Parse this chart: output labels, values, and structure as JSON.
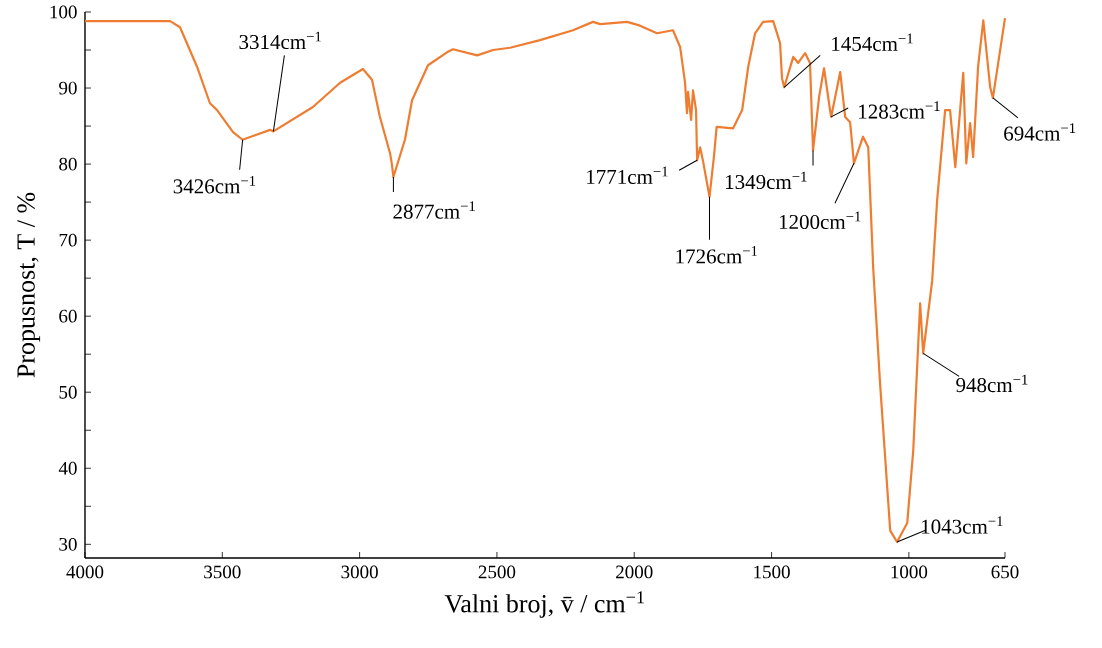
{
  "chart_data": {
    "type": "line",
    "xlabel": "Valni broj, v̄ / cm$^{−1}$",
    "ylabel": "Propusnost, T / %",
    "xlim": [
      4000,
      650
    ],
    "ylim": [
      28.2,
      100
    ],
    "xticks": [
      4000,
      3500,
      3000,
      2500,
      2000,
      1500,
      1000,
      650
    ],
    "yticks": [
      30,
      {
        "value": 35,
        "label": null
      },
      40,
      {
        "value": 45,
        "label": null
      },
      50,
      {
        "value": 55,
        "label": null
      },
      60,
      {
        "value": 65,
        "label": null
      },
      70,
      {
        "value": 75,
        "label": null
      },
      80,
      {
        "value": 85,
        "label": null
      },
      90,
      {
        "value": 95,
        "label": null
      },
      100
    ],
    "marker": "none",
    "line_style": "solid",
    "series": [
      {
        "color": "#ee7d31",
        "x": [
          4000,
          3690,
          3654,
          3592,
          3545,
          3519,
          3461,
          3426,
          3326,
          3314,
          3170,
          3071,
          2988,
          2955,
          2926,
          2889,
          2883,
          2877,
          2835,
          2809,
          2751,
          2682,
          2660,
          2572,
          2514,
          2452,
          2343,
          2223,
          2150,
          2124,
          2026,
          1979,
          1917,
          1859,
          1833,
          1815,
          1808,
          1804,
          1793,
          1786,
          1775,
          1771,
          1760,
          1748,
          1726,
          1710,
          1700,
          1640,
          1607,
          1585,
          1560,
          1531,
          1494,
          1469,
          1462,
          1454,
          1421,
          1403,
          1378,
          1360,
          1349,
          1327,
          1309,
          1287,
          1283,
          1250,
          1232,
          1214,
          1200,
          1167,
          1148,
          1130,
          1105,
          1068,
          1043,
          1006,
          984,
          959,
          948,
          915,
          897,
          868,
          850,
          831,
          802,
          791,
          777,
          766,
          748,
          729,
          704,
          694,
          650
        ],
        "values": [
          98.8,
          98.8,
          98.0,
          92.8,
          88.0,
          87.1,
          84.2,
          83.2,
          84.5,
          84.3,
          87.5,
          90.7,
          92.5,
          91.1,
          86.2,
          81.4,
          80.1,
          78.3,
          83.2,
          88.4,
          93.0,
          94.7,
          95.1,
          94.3,
          95.0,
          95.3,
          96.3,
          97.6,
          98.7,
          98.4,
          98.7,
          98.2,
          97.2,
          97.6,
          95.4,
          90.7,
          86.7,
          89.5,
          85.8,
          89.7,
          87.1,
          80.5,
          82.2,
          80.1,
          75.7,
          80.9,
          84.9,
          84.7,
          87.1,
          92.8,
          97.2,
          98.7,
          98.8,
          95.9,
          91.3,
          90.1,
          94.1,
          93.3,
          94.6,
          93.3,
          81.8,
          88.8,
          92.6,
          87.1,
          86.2,
          92.1,
          86.2,
          85.5,
          80.1,
          83.6,
          82.2,
          66.4,
          51.2,
          31.8,
          30.3,
          32.8,
          42.4,
          61.7,
          55.1,
          64.7,
          75.3,
          87.1,
          87.1,
          79.6,
          92.0,
          80.1,
          85.4,
          80.9,
          92.8,
          98.9,
          90.1,
          88.7,
          99.2
        ]
      }
    ],
    "annotations": [
      {
        "text": "3426cm$^{−1}$",
        "x": 3426,
        "y": 83.2
      },
      {
        "text": "3314cm$^{−1}$",
        "x": 3314,
        "y": 84.3
      },
      {
        "text": "2877cm$^{−1}$",
        "x": 2877,
        "y": 78.3
      },
      {
        "text": "1771cm$^{−1}$",
        "x": 1771,
        "y": 80.5
      },
      {
        "text": "1726cm$^{−1}$",
        "x": 1726,
        "y": 75.7
      },
      {
        "text": "1349cm$^{−1}$",
        "x": 1349,
        "y": 81.8
      },
      {
        "text": "1454cm$^{−1}$",
        "x": 1454,
        "y": 90.1
      },
      {
        "text": "1283cm$^{−1}$",
        "x": 1283,
        "y": 86.2
      },
      {
        "text": "1200cm$^{−1}$",
        "x": 1200,
        "y": 80.1
      },
      {
        "text": "1043cm$^{−1}$",
        "x": 1043,
        "y": 30.3
      },
      {
        "text": "948cm$^{−1}$",
        "x": 948,
        "y": 55.1
      },
      {
        "text": "694cm$^{−1}$",
        "x": 694,
        "y": 88.7
      }
    ]
  }
}
